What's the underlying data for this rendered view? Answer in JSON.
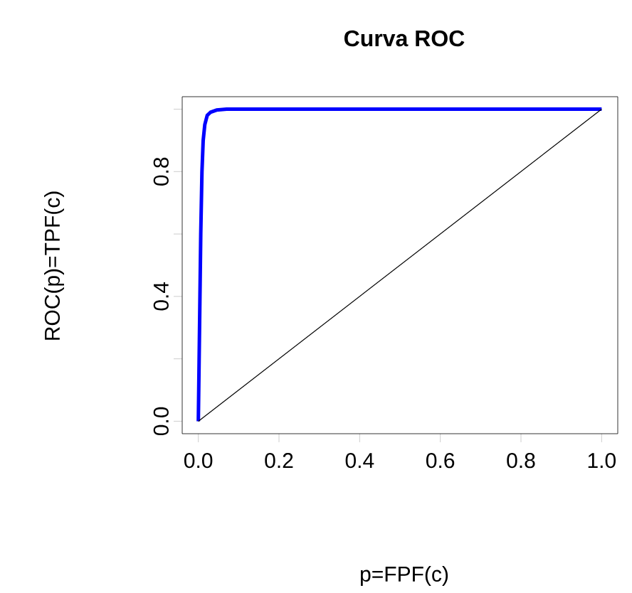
{
  "chart_data": {
    "type": "line",
    "title": "**Curva ROC**",
    "xlabel": "p=FPF(c)",
    "ylabel": "ROC(p)=TPF(c)",
    "xlim": [
      -0.04,
      1.04
    ],
    "ylim": [
      -0.04,
      1.04
    ],
    "xticks": [
      {
        "value": 0.0,
        "label": "0.0"
      },
      0.2,
      0.4,
      0.6,
      0.8,
      {
        "value": 1.0,
        "label": "1.0"
      }
    ],
    "yticks": [
      {
        "value": 0.0,
        "label": "0.0"
      },
      {
        "value": 0.2,
        "label": null
      },
      {
        "value": 0.4,
        "label": "0.4"
      },
      {
        "value": 0.6,
        "label": null
      },
      {
        "value": 0.8,
        "label": "0.8"
      },
      {
        "value": 1.0,
        "label": null
      }
    ],
    "grid": false,
    "series": [
      {
        "color": "#0000ff",
        "x": [
          0,
          0.003,
          0.006,
          0.009,
          0.012,
          0.016,
          0.022,
          0.03,
          0.045,
          0.07,
          1.0
        ],
        "values": [
          0,
          0.3,
          0.6,
          0.8,
          0.9,
          0.95,
          0.98,
          0.99,
          0.997,
          1.0,
          1.0
        ]
      },
      {
        "color": "#000000",
        "x": [
          0,
          1
        ],
        "values": [
          0,
          1
        ]
      }
    ]
  }
}
